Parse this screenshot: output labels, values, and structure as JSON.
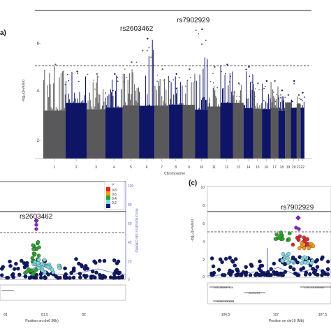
{
  "colors": {
    "chrom_dark": "#59595b",
    "chrom_blue": "#0e1466",
    "threshold_line": "#222222",
    "recomb_line": "#5b5be0",
    "ld_purple": "#8a1fd1",
    "ld_red": "#e0262b",
    "ld_orange": "#f39a1f",
    "ld_green": "#2fa32f",
    "ld_cyan": "#7fd6df",
    "ld_navy": "#101a6a"
  },
  "panel_a": {
    "panel_label": "a)",
    "y_axis_label": "-log₁₀(p-value)",
    "y_ticks": [
      "2-",
      "4-",
      "6-"
    ],
    "x_axis_label": "Chromosome",
    "chromosomes": [
      "1",
      "2",
      "3",
      "4",
      "5",
      "6",
      "7",
      "8",
      "9",
      "10",
      "11",
      "12",
      "13",
      "14",
      "15",
      "16",
      "17",
      "18",
      "19",
      "20",
      "21",
      "22"
    ],
    "snp_labels": [
      {
        "label": "rs2603462",
        "chrom": "6",
        "value": 6.0
      },
      {
        "label": "rs7902929",
        "chrom": "10",
        "value": 6.6
      }
    ]
  },
  "panel_b": {
    "snp_label": "rs2603462",
    "legend_title": "r²",
    "legend_values": [
      "0.8",
      "0.6",
      "0.4",
      "0.2"
    ],
    "recomb_ticks": [
      "100",
      "80",
      "60",
      "40",
      "20",
      "0"
    ],
    "recomb_label": "Recombination rate (cM/Mb)",
    "x_ticks": [
      "81",
      "81.5",
      "82"
    ],
    "x_axis_label": "Position on chr6 (Mb)"
  },
  "panel_c": {
    "panel_label": "(c)",
    "snp_label": "rs7902929",
    "y_axis_label": "-log₁₀(p-value)",
    "y_ticks": [
      "10",
      "8",
      "6",
      "4",
      "2",
      "0"
    ],
    "genes": [
      "LOC285697929",
      "SORCS3",
      "SORCS3-AS1",
      "LOC101928440"
    ],
    "x_ticks": [
      "106.5",
      "107",
      "107.5"
    ],
    "x_axis_label": "Position on chr10 (Mb)"
  },
  "chart_data": [
    {
      "type": "scatter",
      "subtype": "manhattan",
      "ylabel": "-log₁₀(p-value)",
      "xlabel": "Chromosome",
      "ylim": [
        1,
        7
      ],
      "significance_line": 5.0,
      "genome_wide_line": 7.3,
      "categories": [
        "1",
        "2",
        "3",
        "4",
        "5",
        "6",
        "7",
        "8",
        "9",
        "10",
        "11",
        "12",
        "13",
        "14",
        "15",
        "16",
        "17",
        "18",
        "19",
        "20",
        "21",
        "22"
      ],
      "series": [
        {
          "peak_values": [
            5.0,
            4.7,
            4.6,
            4.6,
            5.1,
            6.1,
            4.8,
            4.6,
            4.8,
            6.5,
            4.9,
            5.0,
            4.2,
            4.9,
            4.2,
            4.3,
            4.3,
            3.9,
            3.7,
            4.3,
            3.7,
            3.8
          ]
        }
      ],
      "annotations": [
        {
          "text": "rs2603462",
          "chrom": "6",
          "y": 6.0
        },
        {
          "text": "rs7902929",
          "chrom": "10",
          "y": 6.6
        }
      ]
    },
    {
      "type": "scatter",
      "subtype": "regional",
      "xlabel": "Position on chr6 (Mb)",
      "xlim": [
        80.5,
        82.1
      ],
      "right_ylabel": "Recombination rate (cM/Mb)",
      "right_ylim": [
        0,
        100
      ],
      "lead_snp": {
        "name": "rs2603462",
        "x": 81.5,
        "y": 6.1
      },
      "ld_bins": [
        "0.8",
        "0.6",
        "0.4",
        "0.2"
      ]
    },
    {
      "type": "scatter",
      "subtype": "regional",
      "xlabel": "Position on chr10 (Mb)",
      "ylabel": "-log₁₀(p-value)",
      "ylim": [
        0,
        10
      ],
      "xlim": [
        106.2,
        107.8
      ],
      "lead_snp": {
        "name": "rs7902929",
        "x": 107.1,
        "y": 6.6
      },
      "genes": [
        "LOC285697929",
        "SORCS3",
        "SORCS3-AS1",
        "LOC101928440"
      ]
    }
  ]
}
